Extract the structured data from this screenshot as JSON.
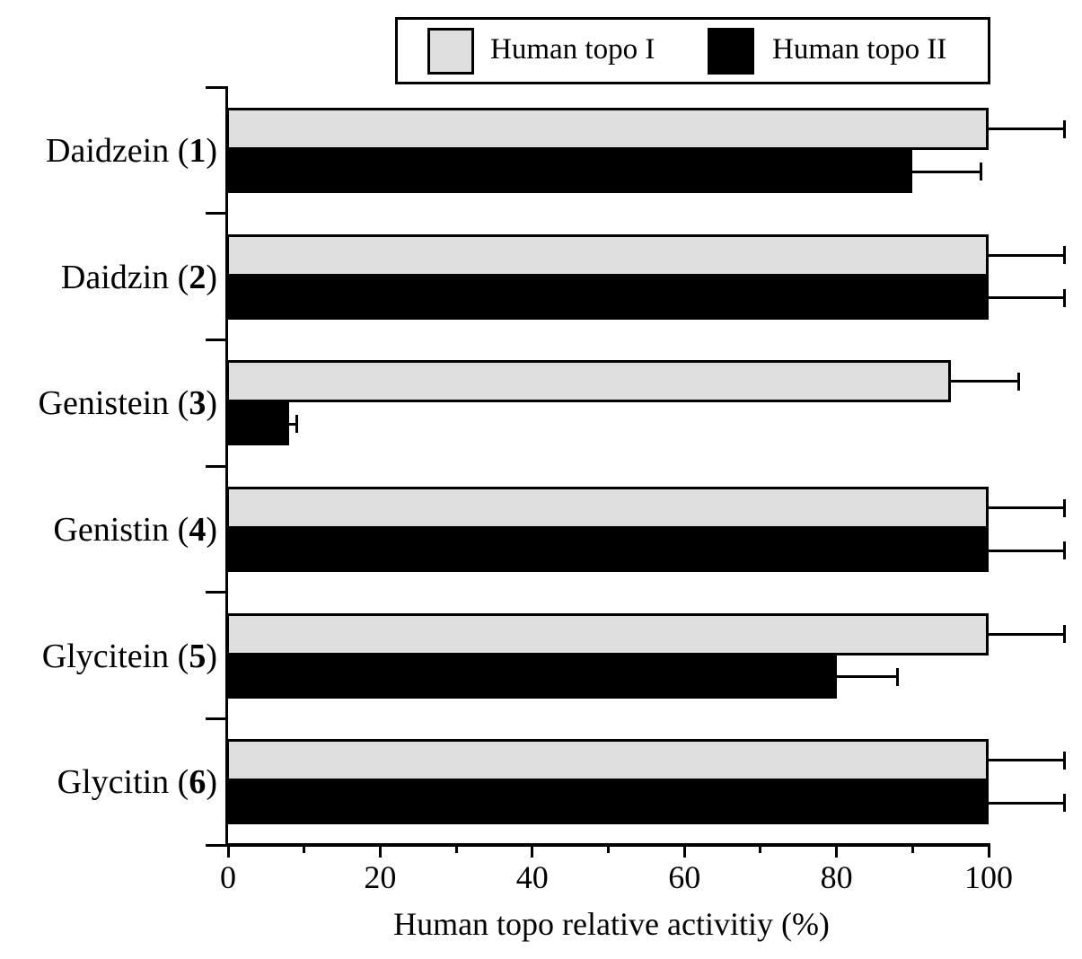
{
  "chart_data": {
    "type": "bar",
    "orientation": "horizontal",
    "title": "",
    "xlabel": "Human topo relative activitiy (%)",
    "ylabel": "",
    "xlim": [
      0,
      100
    ],
    "xticks": [
      0,
      20,
      40,
      60,
      80,
      100
    ],
    "minor_xticks": [
      10,
      30,
      50,
      70,
      90
    ],
    "grid": false,
    "legend_position": "top-center",
    "background_color": "#ffffff",
    "categories": [
      {
        "name": "Daidzein",
        "num": "1",
        "label": "Daidzein (1)"
      },
      {
        "name": "Daidzin",
        "num": "2",
        "label": "Daidzin (2)"
      },
      {
        "name": "Genistein",
        "num": "3",
        "label": "Genistein (3)"
      },
      {
        "name": "Genistin",
        "num": "4",
        "label": "Genistin (4)"
      },
      {
        "name": "Glycitein",
        "num": "5",
        "label": "Glycitein (5)"
      },
      {
        "name": "Glycitin",
        "num": "6",
        "label": "Glycitin (6)"
      }
    ],
    "series": [
      {
        "name": "Human topo I",
        "color": "#dedede",
        "values": [
          100,
          100,
          95,
          100,
          100,
          100
        ],
        "errors": [
          10,
          10,
          9,
          10,
          10,
          10
        ]
      },
      {
        "name": "Human topo II",
        "color": "#000000",
        "values": [
          90,
          100,
          8,
          100,
          80,
          100
        ],
        "errors": [
          9,
          10,
          1,
          10,
          8,
          10
        ]
      }
    ]
  }
}
